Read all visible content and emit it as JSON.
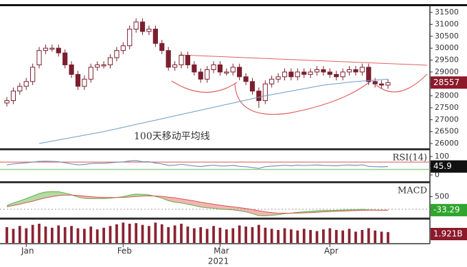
{
  "chart_data": [
    {
      "type": "candlestick",
      "categories": [
        null,
        null,
        null,
        "Jan",
        null,
        null,
        null,
        null,
        null,
        null,
        null,
        null,
        null,
        null,
        null,
        null,
        null,
        null,
        "Feb",
        null,
        null,
        null,
        null,
        null,
        null,
        null,
        null,
        null,
        null,
        null,
        null,
        null,
        null,
        "Mar",
        null,
        null,
        null,
        null,
        null,
        null,
        null,
        null,
        null,
        null,
        null,
        null,
        null,
        null,
        null,
        null,
        "Apr",
        null,
        null,
        null,
        null,
        null,
        null,
        null,
        null,
        null
      ],
      "x_label": "2021",
      "open": [
        27700,
        27800,
        28200,
        28400,
        28600,
        29300,
        29900,
        30000,
        30000,
        29800,
        29300,
        28900,
        28400,
        28700,
        29200,
        29300,
        29300,
        29600,
        29900,
        30100,
        30800,
        31100,
        30700,
        30800,
        30200,
        29900,
        29200,
        29300,
        29700,
        29300,
        29000,
        28700,
        29100,
        29300,
        29000,
        29000,
        29200,
        28800,
        28600,
        28200,
        27800,
        28500,
        28700,
        28800,
        29000,
        28800,
        29000,
        28900,
        29000,
        29100,
        29000,
        28900,
        28800,
        29000,
        29100,
        29000,
        29200,
        28600,
        28500,
        28450
      ],
      "high": [
        27950,
        28350,
        28550,
        28750,
        29350,
        30050,
        30150,
        30150,
        30150,
        29950,
        29450,
        29050,
        28850,
        29350,
        29450,
        29450,
        29750,
        30050,
        30250,
        30950,
        31250,
        31250,
        30950,
        30950,
        30350,
        30050,
        29450,
        29850,
        29850,
        29450,
        29150,
        29250,
        29450,
        29450,
        29150,
        29350,
        29350,
        28950,
        28750,
        28350,
        28650,
        28850,
        28950,
        29150,
        29150,
        29150,
        29150,
        29150,
        29250,
        29250,
        29150,
        29050,
        29150,
        29250,
        29250,
        29350,
        29350,
        28750,
        28650,
        28700
      ],
      "low": [
        27550,
        27650,
        28050,
        28250,
        28450,
        29150,
        29750,
        29850,
        29650,
        29150,
        28750,
        28250,
        28250,
        28550,
        29050,
        29150,
        29150,
        29450,
        29750,
        29950,
        30650,
        30550,
        30550,
        30050,
        29750,
        29050,
        29050,
        29150,
        29150,
        28850,
        28550,
        28550,
        28950,
        28850,
        28850,
        28850,
        28650,
        28450,
        28050,
        27500,
        27650,
        28350,
        28550,
        28650,
        28650,
        28650,
        28750,
        28750,
        28850,
        28850,
        28750,
        28650,
        28650,
        28850,
        28850,
        28850,
        28450,
        28350,
        28300,
        28300
      ],
      "close": [
        27800,
        28200,
        28400,
        28600,
        29200,
        29900,
        30000,
        30000,
        29800,
        29300,
        28900,
        28400,
        28700,
        29200,
        29300,
        29300,
        29600,
        29900,
        30100,
        30800,
        31100,
        30700,
        30800,
        30200,
        29900,
        29200,
        29300,
        29700,
        29300,
        29000,
        28700,
        29100,
        29300,
        29000,
        29000,
        29200,
        28800,
        28600,
        28200,
        27800,
        28500,
        28700,
        28800,
        29000,
        28800,
        29000,
        28900,
        29000,
        29100,
        29000,
        28900,
        28800,
        29000,
        29100,
        29000,
        29200,
        28600,
        28500,
        28450,
        28557
      ],
      "color": "#7b1f2e",
      "moving_average": {
        "color": "#6e9bc6",
        "values": [
          null,
          null,
          null,
          null,
          null,
          26000,
          26050,
          26100,
          26150,
          26200,
          26250,
          26300,
          26350,
          26400,
          26450,
          26500,
          26560,
          26620,
          26680,
          26740,
          26800,
          26860,
          26920,
          26980,
          27040,
          27100,
          27160,
          27220,
          27280,
          27340,
          27400,
          27460,
          27520,
          27580,
          27640,
          27700,
          27760,
          27820,
          27880,
          27940,
          28000,
          28050,
          28100,
          28150,
          28200,
          28250,
          28300,
          28350,
          28400,
          28450,
          28480,
          28510,
          28540,
          28570,
          28600,
          28620,
          28640,
          28660,
          28680,
          28700
        ]
      },
      "annotation": "100天移动平均线",
      "last_price": 28557,
      "ylim": [
        25830,
        31790
      ],
      "yticks": [
        26000,
        26500,
        27000,
        27500,
        28000,
        28500,
        29000,
        29500,
        30000,
        30500,
        31000,
        31500
      ]
    },
    {
      "type": "line",
      "title": "RSI(14)",
      "color": "#7a8fb0",
      "values": [
        55,
        60,
        63,
        66,
        70,
        74,
        75,
        74,
        72,
        66,
        60,
        55,
        57,
        62,
        63,
        63,
        66,
        69,
        71,
        76,
        78,
        72,
        72,
        65,
        60,
        52,
        53,
        58,
        53,
        49,
        46,
        50,
        53,
        49,
        49,
        52,
        47,
        45,
        40,
        36,
        45,
        48,
        50,
        53,
        50,
        53,
        51,
        53,
        54,
        52,
        51,
        50,
        53,
        54,
        52,
        55,
        47,
        45,
        44,
        45.9
      ],
      "reference_lines": [
        {
          "value": 70,
          "color": "#d9534f"
        },
        {
          "value": 30,
          "color": "#5cb85c"
        }
      ],
      "last_value": 45.9,
      "ylim": [
        -30,
        130
      ],
      "yticks": [
        0,
        50,
        100
      ]
    },
    {
      "type": "line",
      "title": "MACD",
      "series": [
        {
          "color": "#5fae45",
          "values": [
            150,
            250,
            330,
            420,
            520,
            620,
            680,
            700,
            690,
            640,
            570,
            480,
            430,
            420,
            420,
            420,
            440,
            470,
            500,
            560,
            600,
            590,
            570,
            510,
            440,
            340,
            280,
            250,
            200,
            150,
            90,
            60,
            40,
            10,
            -10,
            -20,
            -60,
            -100,
            -170,
            -250,
            -260,
            -240,
            -210,
            -170,
            -150,
            -120,
            -100,
            -80,
            -60,
            -50,
            -45,
            -40,
            -30,
            -20,
            -15,
            0,
            -20,
            -30,
            -35,
            -33.29
          ]
        },
        {
          "color": "#d9534f",
          "values": [
            100,
            150,
            200,
            260,
            320,
            390,
            450,
            500,
            540,
            560,
            560,
            545,
            520,
            500,
            480,
            470,
            465,
            465,
            470,
            485,
            505,
            520,
            530,
            525,
            510,
            480,
            450,
            410,
            370,
            330,
            280,
            240,
            200,
            160,
            125,
            95,
            65,
            30,
            -10,
            -60,
            -100,
            -130,
            -150,
            -155,
            -155,
            -150,
            -140,
            -130,
            -115,
            -100,
            -90,
            -80,
            -70,
            -60,
            -50,
            -40,
            -36,
            -34,
            -34,
            -34
          ]
        }
      ],
      "last_value": -33.29,
      "ylim": [
        -300,
        1000
      ],
      "yticks": [
        0,
        500
      ]
    },
    {
      "type": "bar",
      "color": "#8b2232",
      "values": [
        2.8,
        2.5,
        3.0,
        2.6,
        3.2,
        3.4,
        2.9,
        2.7,
        3.1,
        2.8,
        3.0,
        2.6,
        2.5,
        2.9,
        2.4,
        2.7,
        3.0,
        3.3,
        3.6,
        3.4,
        3.5,
        3.2,
        3.0,
        3.6,
        3.3,
        2.8,
        3.1,
        3.4,
        2.9,
        2.6,
        2.8,
        2.5,
        3.0,
        2.7,
        2.4,
        2.6,
        3.1,
        2.9,
        2.8,
        3.2,
        2.7,
        2.5,
        2.3,
        2.6,
        2.4,
        2.2,
        2.5,
        2.3,
        2.1,
        2.4,
        2.6,
        2.3,
        2.2,
        2.5,
        2.0,
        2.3,
        2.6,
        2.2,
        2.0,
        1.921
      ],
      "last_label": "1.921B",
      "ylim": [
        0,
        4
      ]
    }
  ]
}
